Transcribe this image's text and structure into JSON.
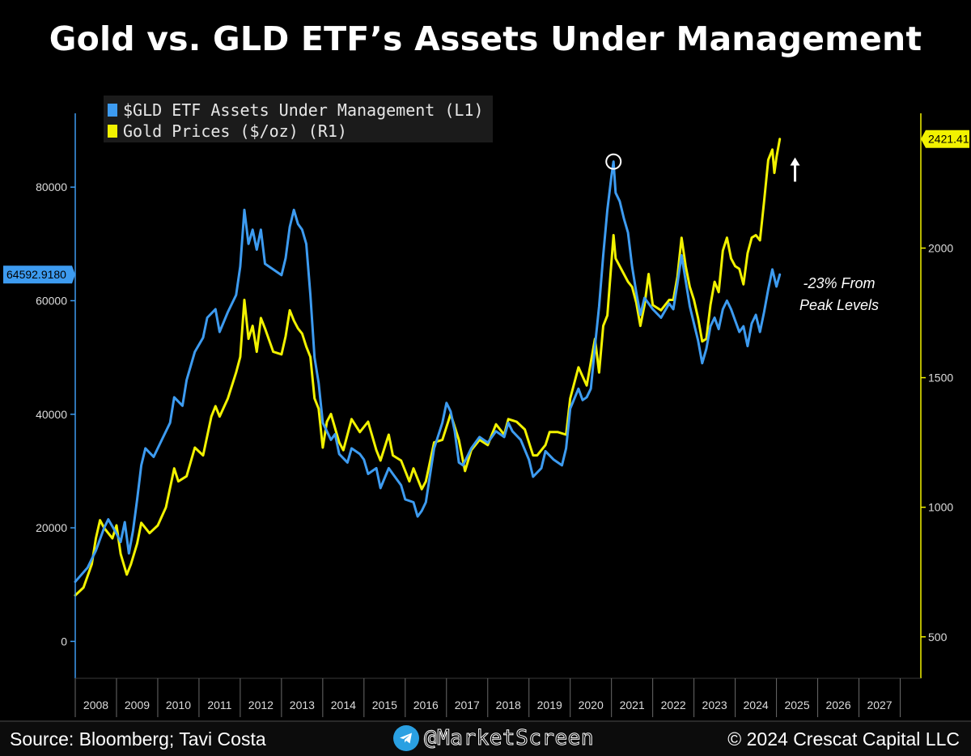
{
  "header": {
    "title": "Gold vs. GLD ETF’s Assets Under Management"
  },
  "footer": {
    "source": "Source: Bloomberg; Tavi Costa",
    "handle": "@MarketScreen",
    "copyright": "© 2024 Crescat Capital LLC"
  },
  "chart_data": {
    "type": "line",
    "title": "Gold vs. GLD ETF’s Assets Under Management",
    "x_axis": {
      "tick_labels": [
        "2008",
        "2009",
        "2010",
        "2011",
        "2012",
        "2013",
        "2014",
        "2015",
        "2016",
        "2017",
        "2018",
        "2019",
        "2020",
        "2021",
        "2022",
        "2023",
        "2024",
        "2025",
        "2026",
        "2027"
      ],
      "range": [
        2007.5,
        2028.0
      ]
    },
    "y_left": {
      "ticks": [
        0,
        20000,
        40000,
        60000,
        80000
      ],
      "range": [
        -6500,
        93000
      ],
      "last_value_label": "64592.9180",
      "color": "#3d9bf0"
    },
    "y_right": {
      "ticks": [
        500,
        1000,
        1500,
        2000
      ],
      "range": [
        340,
        2520
      ],
      "last_value_label": "2421.41",
      "color": "#f2f200"
    },
    "legend": [
      "$GLD ETF Assets Under Management (L1)",
      "Gold Prices ($/oz) (R1)"
    ],
    "annotation": {
      "line1": "-23% From",
      "line2": "Peak Levels"
    },
    "series": [
      {
        "name": "$GLD ETF Assets Under Management (L1)",
        "axis": "left",
        "color": "#3d9bf0",
        "points": [
          [
            2007.5,
            10500
          ],
          [
            2007.8,
            13000
          ],
          [
            2008.0,
            16000
          ],
          [
            2008.2,
            20000
          ],
          [
            2008.3,
            21500
          ],
          [
            2008.5,
            19000
          ],
          [
            2008.6,
            17500
          ],
          [
            2008.7,
            21000
          ],
          [
            2008.8,
            15500
          ],
          [
            2008.9,
            19500
          ],
          [
            2009.0,
            25000
          ],
          [
            2009.1,
            31000
          ],
          [
            2009.2,
            34000
          ],
          [
            2009.4,
            32500
          ],
          [
            2009.6,
            35500
          ],
          [
            2009.8,
            38500
          ],
          [
            2009.9,
            43000
          ],
          [
            2010.1,
            41500
          ],
          [
            2010.2,
            46000
          ],
          [
            2010.4,
            51000
          ],
          [
            2010.6,
            53500
          ],
          [
            2010.7,
            57000
          ],
          [
            2010.9,
            58500
          ],
          [
            2011.0,
            54500
          ],
          [
            2011.2,
            58000
          ],
          [
            2011.4,
            61000
          ],
          [
            2011.5,
            66000
          ],
          [
            2011.6,
            76000
          ],
          [
            2011.7,
            70000
          ],
          [
            2011.8,
            72500
          ],
          [
            2011.9,
            69000
          ],
          [
            2012.0,
            72500
          ],
          [
            2012.1,
            66500
          ],
          [
            2012.3,
            65500
          ],
          [
            2012.5,
            64500
          ],
          [
            2012.6,
            67500
          ],
          [
            2012.7,
            73000
          ],
          [
            2012.8,
            76000
          ],
          [
            2012.9,
            73500
          ],
          [
            2013.0,
            72500
          ],
          [
            2013.1,
            70000
          ],
          [
            2013.2,
            61000
          ],
          [
            2013.3,
            50000
          ],
          [
            2013.4,
            45500
          ],
          [
            2013.5,
            38500
          ],
          [
            2013.6,
            37000
          ],
          [
            2013.7,
            35500
          ],
          [
            2013.8,
            36500
          ],
          [
            2013.9,
            33000
          ],
          [
            2014.1,
            31500
          ],
          [
            2014.2,
            34000
          ],
          [
            2014.4,
            33000
          ],
          [
            2014.5,
            32000
          ],
          [
            2014.6,
            29500
          ],
          [
            2014.8,
            30500
          ],
          [
            2014.9,
            27000
          ],
          [
            2015.1,
            30500
          ],
          [
            2015.2,
            29500
          ],
          [
            2015.4,
            27500
          ],
          [
            2015.5,
            25000
          ],
          [
            2015.7,
            24500
          ],
          [
            2015.8,
            22000
          ],
          [
            2015.9,
            23000
          ],
          [
            2016.0,
            24500
          ],
          [
            2016.2,
            34000
          ],
          [
            2016.4,
            38500
          ],
          [
            2016.5,
            42000
          ],
          [
            2016.6,
            40500
          ],
          [
            2016.7,
            37000
          ],
          [
            2016.8,
            31500
          ],
          [
            2016.9,
            31000
          ],
          [
            2017.1,
            34000
          ],
          [
            2017.3,
            36000
          ],
          [
            2017.5,
            35000
          ],
          [
            2017.7,
            37000
          ],
          [
            2017.9,
            36000
          ],
          [
            2018.0,
            38500
          ],
          [
            2018.1,
            37000
          ],
          [
            2018.3,
            35500
          ],
          [
            2018.5,
            32000
          ],
          [
            2018.6,
            29000
          ],
          [
            2018.8,
            30500
          ],
          [
            2018.9,
            33500
          ],
          [
            2019.1,
            32000
          ],
          [
            2019.3,
            31000
          ],
          [
            2019.4,
            34000
          ],
          [
            2019.5,
            41000
          ],
          [
            2019.7,
            44500
          ],
          [
            2019.8,
            42500
          ],
          [
            2019.9,
            43000
          ],
          [
            2020.0,
            44500
          ],
          [
            2020.1,
            52000
          ],
          [
            2020.2,
            59000
          ],
          [
            2020.3,
            68000
          ],
          [
            2020.4,
            76000
          ],
          [
            2020.5,
            82000
          ],
          [
            2020.55,
            84500
          ],
          [
            2020.6,
            79000
          ],
          [
            2020.7,
            77500
          ],
          [
            2020.8,
            74500
          ],
          [
            2020.9,
            72000
          ],
          [
            2021.0,
            66000
          ],
          [
            2021.1,
            61500
          ],
          [
            2021.2,
            57500
          ],
          [
            2021.3,
            60500
          ],
          [
            2021.5,
            58500
          ],
          [
            2021.7,
            57000
          ],
          [
            2021.9,
            59500
          ],
          [
            2022.0,
            58500
          ],
          [
            2022.1,
            63000
          ],
          [
            2022.2,
            68000
          ],
          [
            2022.3,
            63500
          ],
          [
            2022.4,
            59000
          ],
          [
            2022.5,
            56000
          ],
          [
            2022.6,
            53000
          ],
          [
            2022.7,
            49000
          ],
          [
            2022.8,
            51500
          ],
          [
            2022.9,
            55500
          ],
          [
            2023.0,
            57000
          ],
          [
            2023.1,
            55000
          ],
          [
            2023.2,
            58500
          ],
          [
            2023.3,
            60000
          ],
          [
            2023.4,
            58500
          ],
          [
            2023.5,
            56500
          ],
          [
            2023.6,
            54500
          ],
          [
            2023.7,
            55500
          ],
          [
            2023.8,
            52000
          ],
          [
            2023.9,
            56000
          ],
          [
            2024.0,
            57500
          ],
          [
            2024.1,
            54500
          ],
          [
            2024.2,
            58000
          ],
          [
            2024.3,
            62000
          ],
          [
            2024.4,
            65500
          ],
          [
            2024.5,
            62500
          ],
          [
            2024.58,
            64600
          ]
        ]
      },
      {
        "name": "Gold Prices ($/oz) (R1)",
        "axis": "right",
        "color": "#f2f200",
        "points": [
          [
            2007.5,
            660
          ],
          [
            2007.7,
            690
          ],
          [
            2007.9,
            780
          ],
          [
            2008.0,
            880
          ],
          [
            2008.1,
            950
          ],
          [
            2008.2,
            920
          ],
          [
            2008.4,
            880
          ],
          [
            2008.5,
            930
          ],
          [
            2008.6,
            820
          ],
          [
            2008.75,
            740
          ],
          [
            2008.85,
            780
          ],
          [
            2009.0,
            860
          ],
          [
            2009.1,
            940
          ],
          [
            2009.3,
            900
          ],
          [
            2009.5,
            930
          ],
          [
            2009.7,
            1000
          ],
          [
            2009.9,
            1150
          ],
          [
            2010.0,
            1100
          ],
          [
            2010.2,
            1120
          ],
          [
            2010.4,
            1230
          ],
          [
            2010.6,
            1200
          ],
          [
            2010.8,
            1350
          ],
          [
            2010.9,
            1390
          ],
          [
            2011.0,
            1350
          ],
          [
            2011.2,
            1420
          ],
          [
            2011.4,
            1520
          ],
          [
            2011.5,
            1580
          ],
          [
            2011.6,
            1800
          ],
          [
            2011.7,
            1650
          ],
          [
            2011.8,
            1700
          ],
          [
            2011.9,
            1600
          ],
          [
            2012.0,
            1730
          ],
          [
            2012.1,
            1690
          ],
          [
            2012.3,
            1600
          ],
          [
            2012.5,
            1590
          ],
          [
            2012.6,
            1660
          ],
          [
            2012.7,
            1760
          ],
          [
            2012.8,
            1720
          ],
          [
            2012.9,
            1690
          ],
          [
            2013.0,
            1670
          ],
          [
            2013.1,
            1620
          ],
          [
            2013.2,
            1580
          ],
          [
            2013.3,
            1420
          ],
          [
            2013.4,
            1380
          ],
          [
            2013.5,
            1230
          ],
          [
            2013.6,
            1330
          ],
          [
            2013.7,
            1360
          ],
          [
            2013.9,
            1250
          ],
          [
            2014.0,
            1220
          ],
          [
            2014.2,
            1340
          ],
          [
            2014.4,
            1290
          ],
          [
            2014.6,
            1330
          ],
          [
            2014.8,
            1220
          ],
          [
            2014.9,
            1180
          ],
          [
            2015.1,
            1280
          ],
          [
            2015.2,
            1200
          ],
          [
            2015.4,
            1180
          ],
          [
            2015.6,
            1100
          ],
          [
            2015.7,
            1150
          ],
          [
            2015.9,
            1070
          ],
          [
            2016.0,
            1100
          ],
          [
            2016.2,
            1250
          ],
          [
            2016.4,
            1260
          ],
          [
            2016.6,
            1360
          ],
          [
            2016.8,
            1260
          ],
          [
            2016.95,
            1140
          ],
          [
            2017.1,
            1220
          ],
          [
            2017.3,
            1260
          ],
          [
            2017.5,
            1240
          ],
          [
            2017.7,
            1320
          ],
          [
            2017.9,
            1280
          ],
          [
            2018.0,
            1340
          ],
          [
            2018.2,
            1330
          ],
          [
            2018.4,
            1300
          ],
          [
            2018.6,
            1200
          ],
          [
            2018.7,
            1200
          ],
          [
            2018.9,
            1240
          ],
          [
            2019.0,
            1290
          ],
          [
            2019.2,
            1290
          ],
          [
            2019.4,
            1280
          ],
          [
            2019.5,
            1420
          ],
          [
            2019.7,
            1540
          ],
          [
            2019.9,
            1470
          ],
          [
            2020.0,
            1560
          ],
          [
            2020.1,
            1650
          ],
          [
            2020.2,
            1520
          ],
          [
            2020.3,
            1700
          ],
          [
            2020.4,
            1740
          ],
          [
            2020.55,
            2050
          ],
          [
            2020.6,
            1960
          ],
          [
            2020.8,
            1900
          ],
          [
            2020.9,
            1870
          ],
          [
            2021.0,
            1850
          ],
          [
            2021.1,
            1790
          ],
          [
            2021.2,
            1700
          ],
          [
            2021.3,
            1780
          ],
          [
            2021.4,
            1900
          ],
          [
            2021.5,
            1780
          ],
          [
            2021.7,
            1760
          ],
          [
            2021.9,
            1800
          ],
          [
            2022.0,
            1800
          ],
          [
            2022.1,
            1890
          ],
          [
            2022.2,
            2040
          ],
          [
            2022.3,
            1930
          ],
          [
            2022.4,
            1850
          ],
          [
            2022.5,
            1800
          ],
          [
            2022.6,
            1730
          ],
          [
            2022.7,
            1640
          ],
          [
            2022.8,
            1650
          ],
          [
            2022.9,
            1780
          ],
          [
            2023.0,
            1870
          ],
          [
            2023.1,
            1830
          ],
          [
            2023.2,
            1990
          ],
          [
            2023.3,
            2040
          ],
          [
            2023.4,
            1960
          ],
          [
            2023.5,
            1930
          ],
          [
            2023.6,
            1920
          ],
          [
            2023.7,
            1860
          ],
          [
            2023.8,
            1980
          ],
          [
            2023.9,
            2040
          ],
          [
            2024.0,
            2050
          ],
          [
            2024.1,
            2030
          ],
          [
            2024.2,
            2180
          ],
          [
            2024.3,
            2340
          ],
          [
            2024.4,
            2380
          ],
          [
            2024.45,
            2290
          ],
          [
            2024.5,
            2350
          ],
          [
            2024.58,
            2421
          ]
        ]
      }
    ]
  }
}
